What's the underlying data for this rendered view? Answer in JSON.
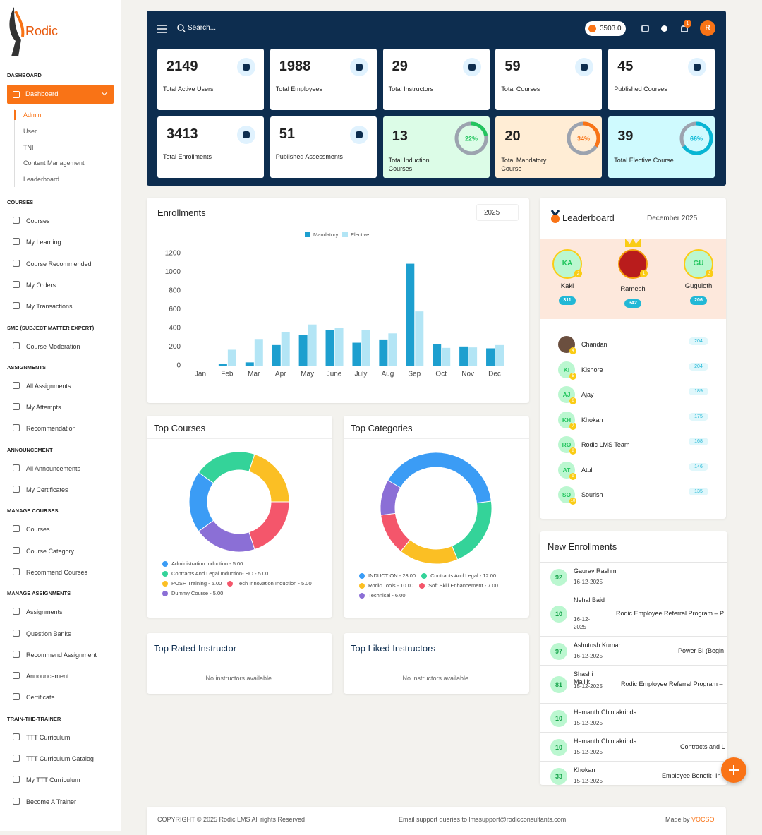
{
  "sidebar": {
    "logo": "Rodic",
    "dashboard_heading": "DASHBOARD",
    "dashboard_button": "Dashboard",
    "subitems": [
      "Admin",
      "User",
      "TNI",
      "Content Management",
      "Leaderboard"
    ],
    "sections": [
      {
        "title": "COURSES",
        "items": [
          "Courses",
          "My Learning",
          "Course Recommended",
          "My Orders",
          "My Transactions"
        ]
      },
      {
        "title": "SME (SUBJECT MATTER EXPERT)",
        "items": [
          "Course Moderation"
        ]
      },
      {
        "title": "ASSIGNMENTS",
        "items": [
          "All Assignments",
          "My Attempts",
          "Recommendation"
        ]
      },
      {
        "title": "ANNOUNCEMENT",
        "items": [
          "All Announcements",
          "My Certificates"
        ]
      },
      {
        "title": "MANAGE COURSES",
        "items": [
          "Courses",
          "Course Category",
          "Recommend Courses"
        ]
      },
      {
        "title": "MANAGE ASSIGNMENTS",
        "items": [
          "Assignments",
          "Question Banks",
          "Recommend Assignment",
          "Announcement",
          "Certificate"
        ]
      },
      {
        "title": "TRAIN-THE-TRAINER",
        "items": [
          "TTT Curriculum",
          "TTT Curriculum Catalog",
          "My TTT Curriculum",
          "Become A Trainer"
        ]
      }
    ]
  },
  "header": {
    "search": "Search...",
    "points": "3503.0",
    "notifications": "1",
    "avatar": "R"
  },
  "stats": [
    {
      "value": 2149,
      "label": "Total Active Users"
    },
    {
      "value": 1988,
      "label": "Total Employees"
    },
    {
      "value": 29,
      "label": "Total Instructors"
    },
    {
      "value": 59,
      "label": "Total Courses"
    },
    {
      "value": 45,
      "label": "Published Courses"
    },
    {
      "value": 3413,
      "label": "Total Enrollments"
    },
    {
      "value": 51,
      "label": "Published Assessments"
    },
    {
      "value": 13,
      "label": "Total Induction Courses",
      "percent": 22,
      "percent_label": "22%",
      "bg": "#dcfce7",
      "color": "#22c55e"
    },
    {
      "value": 20,
      "label": "Total Mandatory Course",
      "percent": 34,
      "percent_label": "34%",
      "bg": "#ffedd5",
      "color": "#f97316"
    },
    {
      "value": 39,
      "label": "Total Elective Course",
      "percent": 66,
      "percent_label": "66%",
      "bg": "#cffafe",
      "color": "#06b6d4"
    }
  ],
  "enrollments": {
    "title": "Enrollments",
    "year": "2025"
  },
  "chart_data": [
    {
      "type": "bar",
      "categories": [
        "Jan",
        "Feb",
        "Mar",
        "Apr",
        "May",
        "June",
        "July",
        "Aug",
        "Sep",
        "Oct",
        "Nov",
        "Dec"
      ],
      "series": [
        {
          "name": "Mandatory",
          "color": "#1d9fcf",
          "values": [
            0,
            15,
            35,
            220,
            330,
            380,
            245,
            280,
            1090,
            230,
            205,
            185
          ]
        },
        {
          "name": "Elective",
          "color": "#b3e5f5",
          "values": [
            0,
            170,
            285,
            360,
            440,
            400,
            380,
            345,
            580,
            190,
            195,
            220
          ]
        }
      ],
      "ylim": [
        0,
        1200
      ],
      "yticks": [
        0,
        200,
        400,
        600,
        800,
        1000,
        1200
      ],
      "grid": false,
      "legend": "top"
    },
    {
      "type": "pie",
      "title": "Top Courses",
      "labels": [
        "Administration Induction - 5.00",
        "Contracts And Legal Induction- HO - 5.00",
        "POSH Training - 5.00",
        "Tech Innovation Induction - 5.00",
        "Dummy Course - 5.00"
      ],
      "values": [
        5,
        5,
        5,
        5,
        5
      ],
      "colors": [
        "#3b9cf5",
        "#34d399",
        "#fbbf24",
        "#f4566b",
        "#8b6fd6"
      ]
    },
    {
      "type": "pie",
      "title": "Top Categories",
      "labels": [
        "INDUCTION - 23.00",
        "Contracts And Legal - 12.00",
        "Rodic Tools - 10.00",
        "Soft Skill Enhancement - 7.00",
        "Technical - 6.00"
      ],
      "values": [
        23,
        12,
        10,
        7,
        6
      ],
      "colors": [
        "#3b9cf5",
        "#34d399",
        "#fbbf24",
        "#f4566b",
        "#8b6fd6"
      ]
    }
  ],
  "top_rated": {
    "title": "Top Rated Instructor",
    "empty": "No instructors available."
  },
  "top_liked": {
    "title": "Top Liked Instructors",
    "empty": "No instructors available."
  },
  "leaderboard": {
    "title": "Leaderboard",
    "period": "December 2025",
    "top": [
      {
        "initials": "KA",
        "name": "Kaki",
        "rank": 2,
        "points": 311
      },
      {
        "name": "Ramesh",
        "rank": 1,
        "points": 342
      },
      {
        "initials": "GU",
        "name": "Guguloth",
        "rank": 3,
        "points": 206
      }
    ],
    "list": [
      {
        "name": "Chandan",
        "rank": 4,
        "points": 204
      },
      {
        "initials": "KI",
        "name": "Kishore",
        "rank": 5,
        "points": 204
      },
      {
        "initials": "AJ",
        "name": "Ajay",
        "rank": 6,
        "points": 189
      },
      {
        "initials": "KH",
        "name": "Khokan",
        "rank": 7,
        "points": 175
      },
      {
        "initials": "RO",
        "name": "Rodic LMS Team",
        "rank": 8,
        "points": 168
      },
      {
        "initials": "AT",
        "name": "Atul",
        "rank": 9,
        "points": 146
      },
      {
        "initials": "SO",
        "name": "Sourish",
        "rank": 10,
        "points": 135
      }
    ]
  },
  "new_enrollments": {
    "title": "New Enrollments",
    "rows": [
      {
        "score": 92,
        "name": "Gaurav Rashmi",
        "date": "16-12-2025"
      },
      {
        "score": 10,
        "name": "Nehal Baid",
        "date": "16-12-2025",
        "course": "Rodic Employee Referral Program – P"
      },
      {
        "score": 97,
        "name": "Ashutosh Kumar",
        "date": "16-12-2025",
        "course": "Power BI (Begin"
      },
      {
        "score": 81,
        "name": "Shashi Mallik",
        "date": "15-12-2025",
        "course": "Rodic Employee Referral Program –"
      },
      {
        "score": 10,
        "name": "Hemanth Chintakrinda",
        "date": "15-12-2025"
      },
      {
        "score": 10,
        "name": "Hemanth Chintakrinda",
        "date": "15-12-2025",
        "course": "Contracts and L"
      },
      {
        "score": 33,
        "name": "Khokan",
        "date": "15-12-2025",
        "course": "Employee Benefit- In"
      }
    ]
  },
  "footer": {
    "copyright": "COPYRIGHT © 2025 Rodic LMS All rights Reserved",
    "support": "Email support queries to lmssupport@rodicconsultants.com",
    "made_by": "Made by",
    "brand": "VOCSO"
  }
}
